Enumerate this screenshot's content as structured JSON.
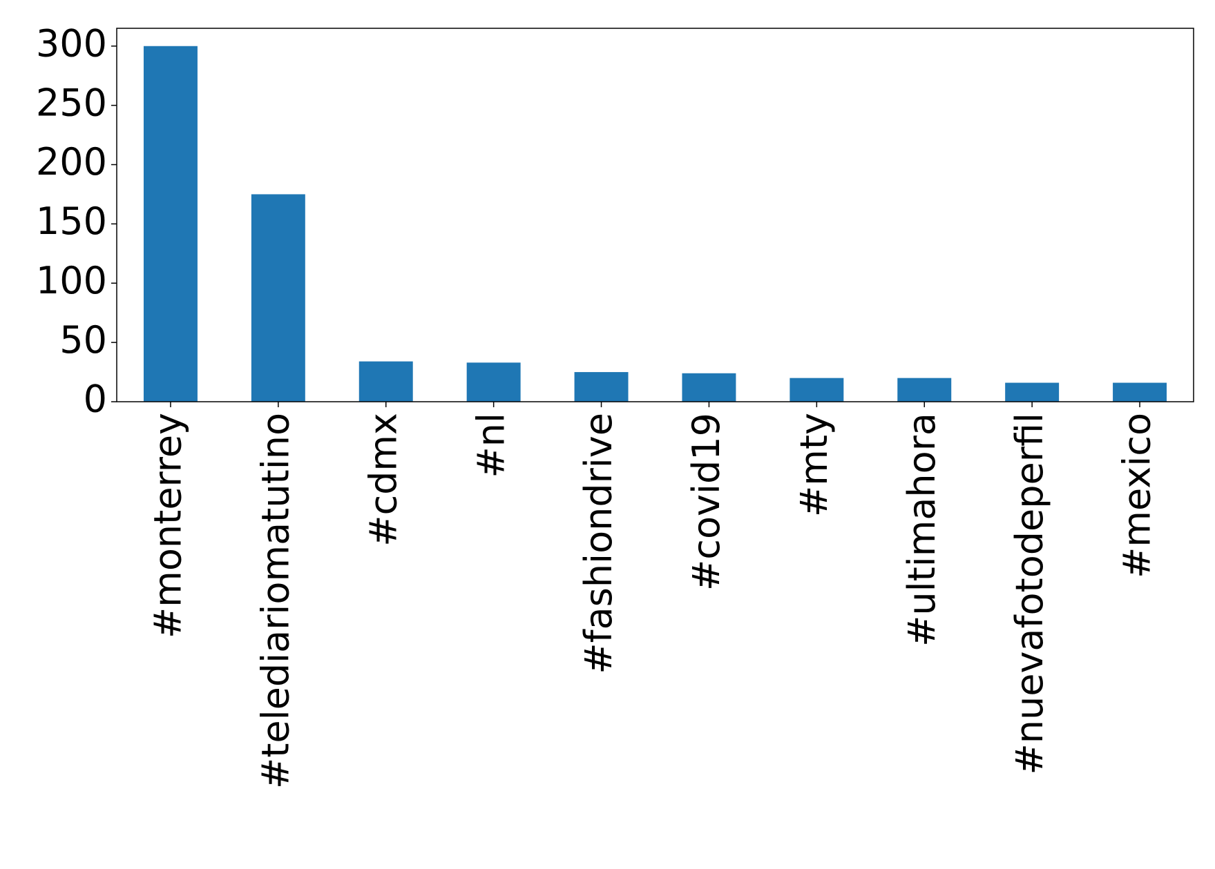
{
  "chart_data": {
    "type": "bar",
    "categories": [
      "#monterrey",
      "#telediariomatutino",
      "#cdmx",
      "#nl",
      "#fashiondrive",
      "#covid19",
      "#mty",
      "#ultimahora",
      "#nuevafotodeperfil",
      "#mexico"
    ],
    "values": [
      300,
      175,
      34,
      33,
      25,
      24,
      20,
      20,
      16,
      16
    ],
    "color": "#1f77b4",
    "ylim": [
      0,
      315
    ],
    "yticks": [
      0,
      50,
      100,
      150,
      200,
      250,
      300
    ],
    "grid": false
  }
}
